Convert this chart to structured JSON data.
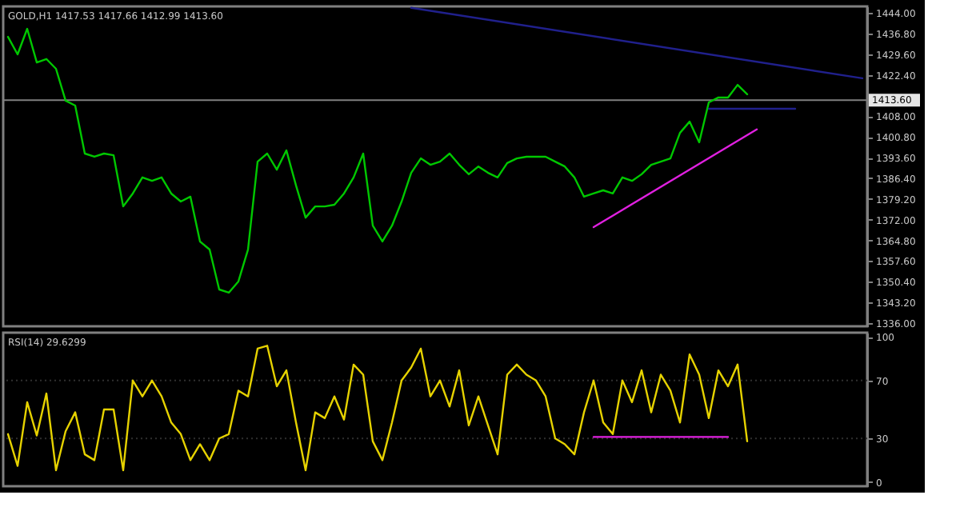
{
  "chart_data": [
    {
      "type": "line",
      "title": "GOLD,H1 1417.53 1417.66 1412.99 1413.60",
      "categories": [
        null,
        null,
        null,
        null,
        null,
        null,
        null,
        null,
        null,
        null,
        null,
        null,
        null,
        null,
        null,
        null,
        null,
        null,
        null,
        null,
        null,
        null,
        null,
        null,
        null,
        null,
        null,
        null,
        null,
        null,
        null,
        null,
        null,
        null,
        null,
        null,
        null,
        null,
        null,
        null,
        null,
        null,
        null,
        null,
        null,
        null,
        null,
        null,
        null,
        null,
        null,
        null,
        null,
        null,
        null,
        null,
        null,
        null,
        null,
        null,
        null,
        null,
        null,
        null,
        null,
        null,
        null,
        null,
        null,
        null,
        null,
        null,
        null,
        null,
        null,
        null,
        null,
        null,
        null,
        null,
        null,
        null,
        null,
        null,
        null,
        null,
        null,
        null,
        null,
        null
      ],
      "series": [
        {
          "color": "#00c800",
          "values": [
            1435.6,
            1429.5,
            1438.4,
            1426.7,
            1427.9,
            1424.5,
            1413.4,
            1411.7,
            1395.0,
            1393.9,
            1395.0,
            1394.4,
            1376.6,
            1381.1,
            1386.7,
            1385.5,
            1386.7,
            1381.1,
            1378.3,
            1380.0,
            1364.4,
            1361.6,
            1347.7,
            1346.6,
            1350.5,
            1361.6,
            1392.2,
            1395.0,
            1389.4,
            1396.1,
            1383.9,
            1372.7,
            1376.6,
            1376.6,
            1377.2,
            1381.1,
            1386.7,
            1395.0,
            1369.9,
            1364.4,
            1369.9,
            1378.3,
            1388.3,
            1393.3,
            1391.1,
            1392.2,
            1395.0,
            1391.1,
            1387.8,
            1390.5,
            1388.3,
            1386.7,
            1391.7,
            1393.3,
            1393.9,
            1393.9,
            1393.9,
            1392.2,
            1390.5,
            1386.7,
            1380.0,
            1381.1,
            1382.2,
            1381.1,
            1386.7,
            1385.5,
            1387.8,
            1391.1,
            1392.2,
            1393.3,
            1402.2,
            1406.1,
            1398.9,
            1412.8,
            1414.5,
            1414.5,
            1418.9,
            1415.6,
            null,
            null,
            null,
            null,
            null,
            null,
            null,
            null,
            null,
            null,
            null,
            null
          ]
        },
        {
          "type": "line",
          "color": "#20208c",
          "values": [
            null,
            null,
            null,
            null,
            null,
            null,
            null,
            null,
            null,
            null,
            null,
            null,
            null,
            null,
            null,
            null,
            null,
            null,
            null,
            null,
            null,
            null,
            null,
            null,
            null,
            null,
            null,
            null,
            null,
            null,
            null,
            null,
            null,
            null,
            null,
            null,
            null,
            null,
            null,
            null,
            null,
            null,
            1445.7,
            null,
            null,
            null,
            null,
            null,
            null,
            null,
            null,
            null,
            null,
            null,
            null,
            null,
            null,
            null,
            null,
            null,
            null,
            null,
            null,
            null,
            null,
            null,
            null,
            null,
            null,
            null,
            null,
            null,
            null,
            null,
            null,
            null,
            null,
            null,
            null,
            null,
            null,
            null,
            null,
            null,
            null,
            null,
            null,
            null,
            null,
            1421.2
          ]
        },
        {
          "type": "line",
          "color": "#20208c",
          "values": [
            null,
            null,
            null,
            null,
            null,
            null,
            null,
            null,
            null,
            null,
            null,
            null,
            null,
            null,
            null,
            null,
            null,
            null,
            null,
            null,
            null,
            null,
            null,
            null,
            null,
            null,
            null,
            null,
            null,
            null,
            null,
            null,
            null,
            null,
            null,
            null,
            null,
            null,
            null,
            null,
            null,
            null,
            null,
            null,
            null,
            null,
            null,
            null,
            null,
            null,
            null,
            null,
            null,
            null,
            null,
            null,
            null,
            null,
            null,
            null,
            null,
            null,
            null,
            null,
            null,
            null,
            null,
            null,
            null,
            null,
            null,
            null,
            null,
            1410.6,
            null,
            null,
            null,
            null,
            null,
            null,
            null,
            null,
            1410.6,
            null,
            null,
            null,
            null,
            null,
            null,
            null
          ]
        },
        {
          "type": "line",
          "color": "#e020e0",
          "values": [
            null,
            null,
            null,
            null,
            null,
            null,
            null,
            null,
            null,
            null,
            null,
            null,
            null,
            null,
            null,
            null,
            null,
            null,
            null,
            null,
            null,
            null,
            null,
            null,
            null,
            null,
            null,
            null,
            null,
            null,
            null,
            null,
            null,
            null,
            null,
            null,
            null,
            null,
            null,
            null,
            null,
            null,
            null,
            null,
            null,
            null,
            null,
            null,
            null,
            null,
            null,
            null,
            null,
            null,
            null,
            null,
            null,
            null,
            null,
            null,
            null,
            1369.4,
            null,
            null,
            null,
            null,
            null,
            null,
            null,
            null,
            null,
            null,
            null,
            null,
            null,
            null,
            null,
            null,
            1403.4,
            null,
            null,
            null,
            null,
            null,
            null,
            null,
            null,
            null,
            null,
            null
          ]
        }
      ],
      "ylim": [
        1334.9,
        1446.2
      ],
      "yticks": [
        {
          "value": 1444,
          "label": "1444.00"
        },
        {
          "value": 1436.8,
          "label": "1436.80"
        },
        {
          "value": 1429.6,
          "label": "1429.60"
        },
        {
          "value": 1422.4,
          "label": "1422.40"
        },
        {
          "value": 1408,
          "label": "1408.00"
        },
        {
          "value": 1400.8,
          "label": "1400.80"
        },
        {
          "value": 1393.6,
          "label": "1393.60"
        },
        {
          "value": 1386.4,
          "label": "1386.40"
        },
        {
          "value": 1379.2,
          "label": "1379.20"
        },
        {
          "value": 1372,
          "label": "1372.00"
        },
        {
          "value": 1364.8,
          "label": "1364.80"
        },
        {
          "value": 1357.6,
          "label": "1357.60"
        },
        {
          "value": 1350.4,
          "label": "1350.40"
        },
        {
          "value": 1343.2,
          "label": "1343.20"
        },
        {
          "value": 1336,
          "label": "1336.00"
        }
      ],
      "ref_lines": [
        {
          "axis": "y",
          "value": 1413.6,
          "label": "1413.60",
          "color": "#808080"
        }
      ],
      "tick_labels": "y",
      "grid": false
    },
    {
      "type": "line",
      "title": "RSI(14) 29.6299",
      "categories": [
        null,
        null,
        null,
        null,
        null,
        null,
        null,
        null,
        null,
        null,
        null,
        null,
        null,
        null,
        null,
        null,
        null,
        null,
        null,
        null,
        null,
        null,
        null,
        null,
        null,
        null,
        null,
        null,
        null,
        null,
        null,
        null,
        null,
        null,
        null,
        null,
        null,
        null,
        null,
        null,
        null,
        null,
        null,
        null,
        null,
        null,
        null,
        null,
        null,
        null,
        null,
        null,
        null,
        null,
        null,
        null,
        null,
        null,
        null,
        null,
        null,
        null,
        null,
        null,
        null,
        null,
        null,
        null,
        null,
        null,
        null,
        null,
        null,
        null,
        null,
        null,
        null,
        null,
        null,
        null,
        null,
        null,
        null,
        null,
        null,
        null,
        null,
        null,
        null,
        null
      ],
      "series": [
        {
          "color": "#e6d200",
          "values": [
            33,
            11,
            55,
            32,
            61,
            8,
            35,
            48,
            19,
            15,
            50,
            50,
            8,
            70,
            59,
            70,
            59,
            41,
            33,
            15,
            26,
            15,
            30,
            33,
            63,
            59,
            92,
            94,
            66,
            77,
            41,
            8,
            48,
            44,
            59,
            43,
            81,
            74,
            28,
            15,
            41,
            70,
            79,
            92,
            59,
            70,
            52,
            77,
            39,
            59,
            39,
            19,
            74,
            81,
            74,
            70,
            59,
            30,
            26,
            19,
            48,
            70,
            41,
            33,
            70,
            55,
            77,
            48,
            74,
            63,
            41,
            88,
            74,
            44,
            77,
            66,
            81,
            28,
            null,
            null,
            null,
            null,
            null,
            null,
            null,
            null,
            null,
            null,
            null,
            null
          ]
        },
        {
          "type": "line",
          "color": "#e020e0",
          "values": [
            null,
            null,
            null,
            null,
            null,
            null,
            null,
            null,
            null,
            null,
            null,
            null,
            null,
            null,
            null,
            null,
            null,
            null,
            null,
            null,
            null,
            null,
            null,
            null,
            null,
            null,
            null,
            null,
            null,
            null,
            null,
            null,
            null,
            null,
            null,
            null,
            null,
            null,
            null,
            null,
            null,
            null,
            null,
            null,
            null,
            null,
            null,
            null,
            null,
            null,
            null,
            null,
            null,
            null,
            null,
            null,
            null,
            null,
            null,
            null,
            null,
            31,
            null,
            null,
            null,
            null,
            null,
            null,
            null,
            null,
            null,
            null,
            null,
            null,
            null,
            31,
            null,
            null,
            null,
            null,
            null,
            null,
            null,
            null,
            null,
            null,
            null,
            null,
            null,
            null
          ]
        }
      ],
      "ylim": [
        -3,
        103
      ],
      "yticks": [
        100,
        70,
        30,
        0
      ],
      "ref_lines": [
        {
          "axis": "y",
          "value": 70,
          "color": "#303030",
          "line_style": "dotted"
        },
        {
          "axis": "y",
          "value": 30,
          "color": "#303030",
          "line_style": "dotted"
        }
      ],
      "tick_labels": "y",
      "grid": false
    }
  ]
}
